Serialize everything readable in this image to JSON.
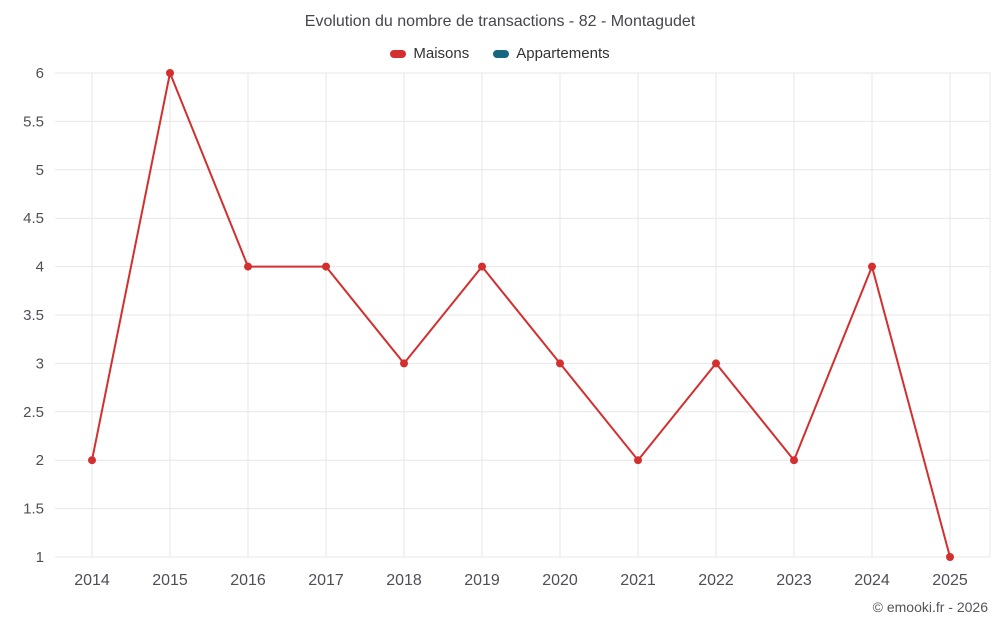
{
  "title": "Evolution du nombre de transactions - 82 - Montagudet",
  "legend": [
    {
      "label": "Maisons",
      "color": "#d32f2f"
    },
    {
      "label": "Appartements",
      "color": "#17657f"
    }
  ],
  "footer": "© emooki.fr - 2026",
  "colors": {
    "grid": "#e7e7e7",
    "tick_label": "#4f4f57",
    "title_text": "#45454d"
  },
  "chart_data": {
    "type": "line",
    "title": "Evolution du nombre de transactions - 82 - Montagudet",
    "categories": [
      "2014",
      "2015",
      "2016",
      "2017",
      "2018",
      "2019",
      "2020",
      "2021",
      "2022",
      "2023",
      "2024",
      "2025"
    ],
    "series": [
      {
        "name": "Maisons",
        "color": "#d32f2f",
        "values": [
          2,
          6,
          4,
          4,
          3,
          4,
          3,
          2,
          3,
          2,
          4,
          1
        ]
      },
      {
        "name": "Appartements",
        "color": "#17657f",
        "values": []
      }
    ],
    "xlabel": "",
    "ylabel": "",
    "ylim": [
      1,
      6
    ],
    "ytick_step": 0.5,
    "yticks": [
      "1",
      "1.5",
      "2",
      "2.5",
      "3",
      "3.5",
      "4",
      "4.5",
      "5",
      "5.5",
      "6"
    ],
    "grid": true,
    "legend_position": "top"
  }
}
